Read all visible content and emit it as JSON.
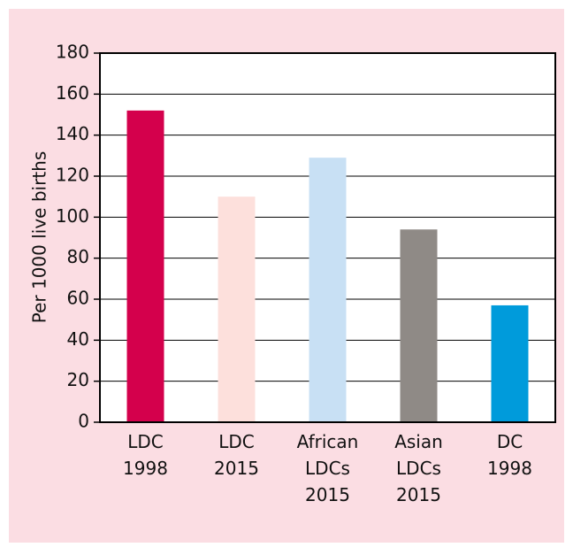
{
  "chart_data": {
    "type": "bar",
    "y_label": "Per 1000 live births",
    "categories": [
      [
        "LDC",
        "1998"
      ],
      [
        "LDC",
        "2015"
      ],
      [
        "African",
        "LDCs",
        "2015"
      ],
      [
        "Asian",
        "LDCs",
        "2015"
      ],
      [
        "DC",
        "1998"
      ]
    ],
    "values": [
      152,
      110,
      129,
      94,
      57
    ],
    "colors": [
      "#d4004c",
      "#fde0dc",
      "#c8e0f4",
      "#8f8a86",
      "#009bdb"
    ],
    "ylim": [
      0,
      180
    ],
    "yticks": [
      0,
      20,
      40,
      60,
      80,
      100,
      120,
      140,
      160,
      180
    ],
    "grid": true
  }
}
